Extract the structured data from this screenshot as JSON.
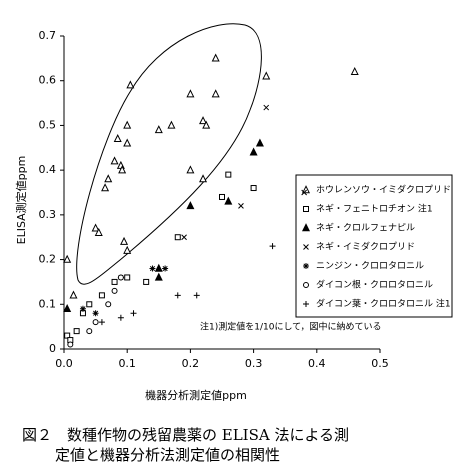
{
  "chart_data": {
    "type": "scatter",
    "caption": [
      "図２　数種作物の残留農薬の ELISA 法による測",
      "定値と機器分析法測定値の相関性"
    ],
    "x_label": "機器分析測定値ppm",
    "y_label": "ELISA測定値ppm",
    "annotation": "注1)測定値を1/10にして，図中に納めている",
    "xlim": [
      0,
      0.5
    ],
    "ylim": [
      0,
      0.7
    ],
    "xticks": [
      {
        "value": 0,
        "label": "0.0"
      },
      0.1,
      0.2,
      0.3,
      0.4,
      0.5
    ],
    "yticks": [
      0,
      0.1,
      0.2,
      0.3,
      0.4,
      0.5,
      0.6,
      0.7
    ],
    "series": [
      {
        "name": "ホウレンソウ・イミダクロプリド",
        "marker": "triangle-open",
        "color": "#000000",
        "x": [
          0.005,
          0.015,
          0.05,
          0.055,
          0.065,
          0.07,
          0.08,
          0.085,
          0.09,
          0.092,
          0.095,
          0.1,
          0.1,
          0.1,
          0.105,
          0.15,
          0.17,
          0.2,
          0.2,
          0.22,
          0.22,
          0.225,
          0.24,
          0.24,
          0.32,
          0.46
        ],
        "y": [
          0.2,
          0.12,
          0.27,
          0.26,
          0.36,
          0.38,
          0.42,
          0.47,
          0.41,
          0.4,
          0.24,
          0.22,
          0.46,
          0.5,
          0.59,
          0.49,
          0.5,
          0.57,
          0.4,
          0.38,
          0.51,
          0.5,
          0.57,
          0.65,
          0.61,
          0.62
        ]
      },
      {
        "name": "ネギ・フェニトロチオン 注1",
        "marker": "square-open",
        "color": "#000000",
        "x": [
          0.005,
          0.01,
          0.02,
          0.03,
          0.04,
          0.06,
          0.08,
          0.1,
          0.13,
          0.18,
          0.25,
          0.26,
          0.3
        ],
        "y": [
          0.03,
          0.02,
          0.04,
          0.08,
          0.1,
          0.12,
          0.15,
          0.16,
          0.15,
          0.25,
          0.34,
          0.39,
          0.36
        ]
      },
      {
        "name": "ネギ・クロルフェナピル",
        "marker": "triangle-filled",
        "color": "#000000",
        "x": [
          0.005,
          0.15,
          0.15,
          0.2,
          0.26,
          0.3,
          0.31
        ],
        "y": [
          0.09,
          0.18,
          0.16,
          0.32,
          0.33,
          0.44,
          0.46
        ]
      },
      {
        "name": "ネギ・イミダクロプリド",
        "marker": "x",
        "color": "#000000",
        "x": [
          0.19,
          0.28,
          0.32,
          0.38
        ],
        "y": [
          0.25,
          0.32,
          0.54,
          0.35
        ]
      },
      {
        "name": "ニンジン・クロロタロニル",
        "marker": "star",
        "color": "#000000",
        "x": [
          0.03,
          0.05,
          0.09,
          0.14,
          0.16
        ],
        "y": [
          0.09,
          0.08,
          0.16,
          0.18,
          0.18
        ]
      },
      {
        "name": "ダイコン根・クロロタロニル",
        "marker": "circle-open",
        "color": "#000000",
        "x": [
          0.01,
          0.04,
          0.05,
          0.07,
          0.08,
          0.09
        ],
        "y": [
          0.01,
          0.04,
          0.06,
          0.1,
          0.13,
          0.16
        ]
      },
      {
        "name": "ダイコン葉・クロロタロニル 注1",
        "marker": "plus",
        "color": "#000000",
        "x": [
          0.06,
          0.09,
          0.11,
          0.18,
          0.21,
          0.33
        ],
        "y": [
          0.06,
          0.07,
          0.08,
          0.12,
          0.12,
          0.23
        ]
      }
    ]
  }
}
